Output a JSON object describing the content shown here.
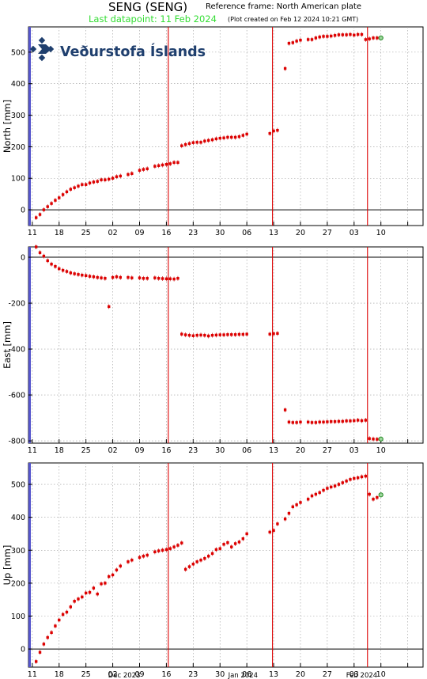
{
  "header": {
    "title": "SENG (SENG)",
    "reference_frame": "Reference frame: North American plate",
    "last_datapoint": "Last datapoint: 11 Feb 2024",
    "plot_created": "(Plot created on Feb 12 2024 10:21 GMT)"
  },
  "logo": {
    "text": "Veðurstofa Íslands",
    "color": "#1f3f6e"
  },
  "colors": {
    "data": "#dd0000",
    "event_line": "#dd0000",
    "grid": "#999999",
    "axis_left": "#5555cc",
    "last_point": "#228822"
  },
  "chart_data": [
    {
      "type": "scatter",
      "name": "north",
      "ylabel": "North [mm]",
      "ylim": [
        -50,
        580
      ],
      "yticks": [
        0,
        100,
        200,
        300,
        400,
        500
      ],
      "x_ticks": [
        11,
        18,
        25,
        32,
        39,
        46,
        53,
        60,
        67,
        74,
        81,
        88,
        95,
        102,
        109
      ],
      "x_tick_labels": [
        "11",
        "18",
        "25",
        "02",
        "09",
        "16",
        "23",
        "30",
        "06",
        "13",
        "20",
        "27",
        "03",
        "10",
        ""
      ],
      "xlim": [
        10,
        113
      ],
      "event_lines": [
        46.5,
        73.7,
        98.5
      ],
      "x": [
        12,
        13,
        14,
        15,
        16,
        17,
        18,
        19,
        20,
        21,
        22,
        23,
        24,
        25,
        26,
        27,
        28,
        29,
        30,
        31,
        32,
        33,
        34,
        36,
        37,
        39,
        40,
        41,
        43,
        44,
        45,
        46,
        47,
        48,
        49,
        50,
        51,
        52,
        53,
        54,
        55,
        56,
        57,
        58,
        59,
        60,
        61,
        62,
        63,
        64,
        65,
        66,
        67,
        73,
        74,
        75,
        77,
        78,
        79,
        80,
        81,
        83,
        84,
        85,
        86,
        87,
        88,
        89,
        90,
        91,
        92,
        93,
        94,
        95,
        96,
        97,
        98,
        99,
        100,
        101
      ],
      "values": [
        -25,
        -15,
        0,
        10,
        20,
        30,
        38,
        48,
        57,
        65,
        70,
        75,
        80,
        80,
        85,
        88,
        90,
        95,
        95,
        97,
        100,
        105,
        107,
        112,
        115,
        125,
        128,
        130,
        138,
        140,
        142,
        144,
        146,
        150,
        150,
        203,
        207,
        210,
        213,
        214,
        214,
        218,
        220,
        222,
        225,
        227,
        228,
        230,
        230,
        230,
        232,
        236,
        240,
        242,
        250,
        252,
        448,
        528,
        530,
        535,
        538,
        540,
        540,
        545,
        548,
        550,
        550,
        551,
        553,
        555,
        555,
        555,
        556,
        554,
        556,
        556,
        540,
        542,
        545,
        545
      ],
      "last_point": {
        "x": 102,
        "value": 545
      }
    },
    {
      "type": "scatter",
      "name": "east",
      "ylabel": "East [mm]",
      "ylim": [
        -810,
        45
      ],
      "yticks": [
        -800,
        -600,
        -400,
        -200,
        0
      ],
      "x_ticks": [
        11,
        18,
        25,
        32,
        39,
        46,
        53,
        60,
        67,
        74,
        81,
        88,
        95,
        102,
        109
      ],
      "x_tick_labels": [
        "11",
        "18",
        "25",
        "02",
        "09",
        "16",
        "23",
        "30",
        "06",
        "13",
        "20",
        "27",
        "03",
        "10",
        ""
      ],
      "xlim": [
        10,
        113
      ],
      "event_lines": [
        46.5,
        73.7,
        98.5
      ],
      "x": [
        12,
        13,
        14,
        15,
        16,
        17,
        18,
        19,
        20,
        21,
        22,
        23,
        24,
        25,
        26,
        27,
        28,
        29,
        30,
        31,
        32,
        33,
        34,
        36,
        37,
        39,
        40,
        41,
        43,
        44,
        45,
        46,
        47,
        48,
        49,
        50,
        51,
        52,
        53,
        54,
        55,
        56,
        57,
        58,
        59,
        60,
        61,
        62,
        63,
        64,
        65,
        66,
        67,
        73,
        74,
        75,
        77,
        78,
        79,
        80,
        81,
        83,
        84,
        85,
        86,
        87,
        88,
        89,
        90,
        91,
        92,
        93,
        94,
        95,
        96,
        97,
        98,
        99,
        100,
        101
      ],
      "values": [
        45,
        20,
        5,
        -15,
        -30,
        -40,
        -50,
        -57,
        -62,
        -68,
        -72,
        -75,
        -78,
        -80,
        -83,
        -85,
        -88,
        -90,
        -92,
        -215,
        -88,
        -85,
        -88,
        -88,
        -90,
        -90,
        -92,
        -92,
        -90,
        -92,
        -93,
        -94,
        -94,
        -95,
        -92,
        -335,
        -338,
        -340,
        -342,
        -340,
        -339,
        -340,
        -343,
        -340,
        -339,
        -338,
        -338,
        -337,
        -337,
        -337,
        -336,
        -336,
        -335,
        -335,
        -333,
        -332,
        -665,
        -718,
        -720,
        -720,
        -718,
        -718,
        -720,
        -720,
        -718,
        -718,
        -717,
        -716,
        -716,
        -715,
        -715,
        -713,
        -713,
        -712,
        -710,
        -712,
        -710,
        -790,
        -792,
        -793
      ],
      "last_point": {
        "x": 102,
        "value": -792
      }
    },
    {
      "type": "scatter",
      "name": "up",
      "ylabel": "Up [mm]",
      "ylim": [
        -55,
        565
      ],
      "yticks": [
        0,
        100,
        200,
        300,
        400,
        500
      ],
      "x_ticks": [
        11,
        18,
        25,
        32,
        39,
        46,
        53,
        60,
        67,
        74,
        81,
        88,
        95,
        102,
        109
      ],
      "x_tick_labels": [
        "11",
        "18",
        "25",
        "02",
        "09",
        "16",
        "23",
        "30",
        "06",
        "13",
        "20",
        "27",
        "03",
        "10",
        ""
      ],
      "month_labels": [
        {
          "x": 35,
          "label": "Dec 2023"
        },
        {
          "x": 66,
          "label": "Jan 2024"
        },
        {
          "x": 97,
          "label": "Feb 2024"
        }
      ],
      "xlim": [
        10,
        113
      ],
      "event_lines": [
        46.5,
        73.7,
        98.5
      ],
      "x": [
        12,
        13,
        14,
        15,
        16,
        17,
        18,
        19,
        20,
        21,
        22,
        23,
        24,
        25,
        26,
        27,
        28,
        29,
        30,
        31,
        32,
        33,
        34,
        36,
        37,
        39,
        40,
        41,
        43,
        44,
        45,
        46,
        47,
        48,
        49,
        50,
        51,
        52,
        53,
        54,
        55,
        56,
        57,
        58,
        59,
        60,
        61,
        62,
        63,
        64,
        65,
        66,
        67,
        73,
        74,
        75,
        77,
        78,
        79,
        80,
        81,
        83,
        84,
        85,
        86,
        87,
        88,
        89,
        90,
        91,
        92,
        93,
        94,
        95,
        96,
        97,
        98,
        99,
        100,
        101
      ],
      "values": [
        -38,
        -10,
        15,
        35,
        50,
        70,
        88,
        105,
        112,
        128,
        145,
        152,
        158,
        170,
        172,
        185,
        167,
        198,
        200,
        220,
        225,
        240,
        252,
        265,
        270,
        278,
        282,
        285,
        295,
        298,
        300,
        302,
        305,
        310,
        315,
        322,
        242,
        250,
        258,
        265,
        270,
        275,
        282,
        290,
        302,
        305,
        318,
        323,
        310,
        320,
        325,
        335,
        350,
        355,
        360,
        380,
        395,
        412,
        432,
        438,
        445,
        455,
        465,
        470,
        475,
        482,
        488,
        492,
        495,
        500,
        505,
        510,
        515,
        518,
        520,
        523,
        525,
        470,
        455,
        460
      ],
      "last_point": {
        "x": 102,
        "value": 468
      }
    }
  ]
}
